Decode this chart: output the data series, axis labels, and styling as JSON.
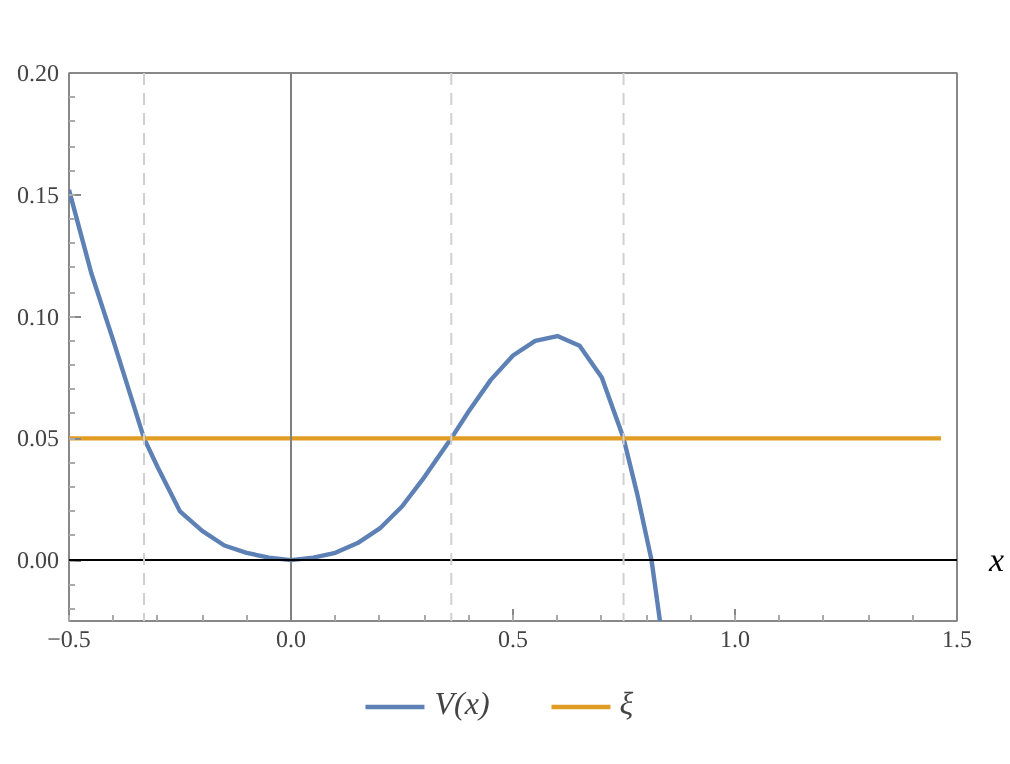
{
  "chart_data": {
    "type": "line",
    "xlabel": "x",
    "xlim": [
      -0.5,
      1.5
    ],
    "ylim": [
      -0.025,
      0.2
    ],
    "xticks": [
      {
        "value": -0.5,
        "label": "−0.5"
      },
      {
        "value": 0,
        "label": "0.0"
      },
      {
        "value": 0.5,
        "label": "0.5"
      },
      {
        "value": 1,
        "label": "1.0"
      },
      {
        "value": 1.5,
        "label": "1.5"
      }
    ],
    "yticks": [
      {
        "value": 0,
        "label": "0.00"
      },
      {
        "value": 0.05,
        "label": "0.05"
      },
      {
        "value": 0.1,
        "label": "0.10"
      },
      {
        "value": 0.15,
        "label": "0.15"
      },
      {
        "value": 0.2,
        "label": "0.20"
      }
    ],
    "series": [
      {
        "name": "V(x)",
        "color": "#5e81b5",
        "x": [
          -0.5,
          -0.45,
          -0.4,
          -0.331,
          -0.3,
          -0.25,
          -0.2,
          -0.15,
          -0.1,
          -0.05,
          0,
          0.05,
          0.1,
          0.15,
          0.2,
          0.25,
          0.3,
          0.361,
          0.4,
          0.45,
          0.5,
          0.55,
          0.6,
          0.65,
          0.7,
          0.749,
          0.78,
          0.812,
          0.831
        ],
        "values": [
          0.152,
          0.118,
          0.09,
          0.05,
          0.038,
          0.02,
          0.012,
          0.006,
          0.003,
          0.001,
          0,
          0.001,
          0.003,
          0.007,
          0.013,
          0.022,
          0.034,
          0.05,
          0.061,
          0.074,
          0.084,
          0.09,
          0.092,
          0.088,
          0.075,
          0.05,
          0.027,
          0,
          -0.025
        ]
      },
      {
        "name": "ξ",
        "color": "#e19c24",
        "x": [
          -0.5,
          1.464
        ],
        "values": [
          0.05,
          0.05
        ]
      }
    ],
    "ref_lines": [
      {
        "axis": "x",
        "value": 0,
        "color": "#808080",
        "line_style": "solid"
      },
      {
        "axis": "y",
        "value": 0,
        "color": "#000000",
        "line_style": "solid"
      },
      {
        "axis": "x",
        "value": -0.331,
        "color": "#d0d0d0",
        "line_style": "dashed"
      },
      {
        "axis": "x",
        "value": 0.361,
        "color": "#d0d0d0",
        "line_style": "dashed"
      },
      {
        "axis": "x",
        "value": 0.749,
        "color": "#d0d0d0",
        "line_style": "dashed"
      }
    ],
    "legend": "bottom",
    "grid": false,
    "marker": "none",
    "line_style": "solid"
  }
}
